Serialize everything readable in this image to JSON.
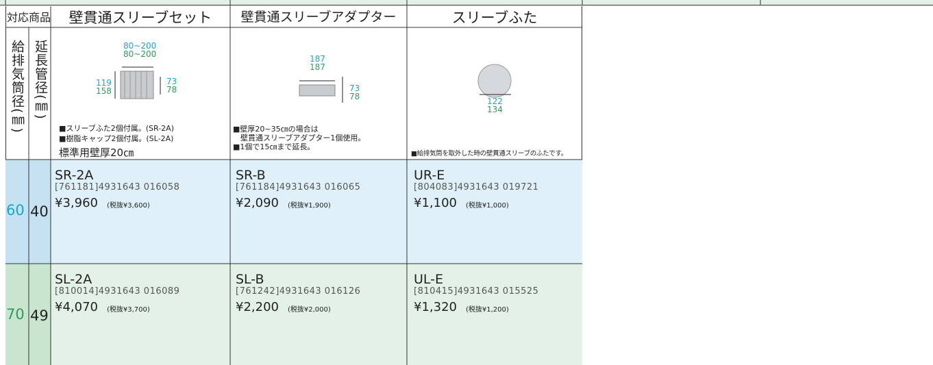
{
  "header": {
    "corner": "対応商品",
    "columns": [
      "壁貫通スリーブセット",
      "壁貫通スリーブアダプター",
      "スリーブふた"
    ]
  },
  "side_labels": [
    "給排気筒径(㎜)",
    "延長管径(㎜)"
  ],
  "images": [
    {
      "dims": [
        "80~200",
        "80~200",
        "119",
        "158",
        "73",
        "78"
      ],
      "notes": [
        "■スリーブふた2個付属。(SR-2A)",
        "■樹脂キャップ2個付属。(SL-2A)",
        "標準用壁厚20㎝"
      ]
    },
    {
      "dims": [
        "187",
        "187",
        "73",
        "78"
      ],
      "notes": [
        "■壁厚20~35㎝の場合は",
        "　壁貫通スリーブアダプター1個使用。",
        "■1個で15㎝まで延長。"
      ]
    },
    {
      "dims": [
        "122",
        "134"
      ],
      "notes": [
        "■給排気筒を取外した時の壁貫通スリーブのふたです。"
      ]
    }
  ],
  "rows": [
    {
      "diameter": "60",
      "extension": "40",
      "products": [
        {
          "code": "SR-2A",
          "jan": "[761181]4931643 016058",
          "price": "¥3,960",
          "tax_excluded": "(税抜¥3,600)"
        },
        {
          "code": "SR-B",
          "jan": "[761184]4931643 016065",
          "price": "¥2,090",
          "tax_excluded": "(税抜¥1,900)"
        },
        {
          "code": "UR-E",
          "jan": "[804083]4931643 019721",
          "price": "¥1,100",
          "tax_excluded": "(税抜¥1,000)"
        }
      ]
    },
    {
      "diameter": "70",
      "extension": "49",
      "products": [
        {
          "code": "SL-2A",
          "jan": "[810014]4931643 016089",
          "price": "¥4,070",
          "tax_excluded": "(税抜¥3,700)"
        },
        {
          "code": "SL-B",
          "jan": "[761242]4931643 016126",
          "price": "¥2,200",
          "tax_excluded": "(税抜¥2,000)"
        },
        {
          "code": "UL-E",
          "jan": "[810415]4931643 015525",
          "price": "¥1,320",
          "tax_excluded": "(税抜¥1,200)"
        }
      ]
    }
  ]
}
